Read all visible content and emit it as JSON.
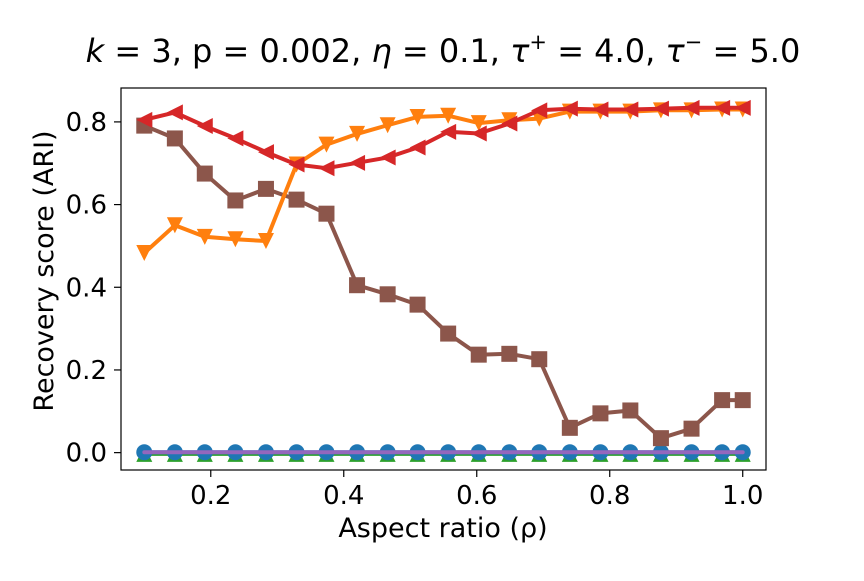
{
  "chart_data": {
    "type": "line",
    "title": "k = 3, p = 0.002, η = 0.1, τ⁺ = 4.0, τ⁻ = 5.0",
    "title_parts": {
      "k": "k",
      "k_rest": " = 3, p = 0.002, ",
      "eta": "η",
      "eta_rest": " = 0.1, ",
      "tau_plus": "τ",
      "tau_plus_sup": "+",
      "tau_plus_rest": " = 4.0, ",
      "tau_minus": "τ",
      "tau_minus_sup": "−",
      "tau_minus_rest": " = 5.0"
    },
    "xlabel": "Aspect ratio (ρ)",
    "ylabel": "Recovery score (ARI)",
    "xlim": [
      0.065,
      1.035
    ],
    "ylim": [
      -0.042,
      0.882
    ],
    "xticks": [
      0.2,
      0.4,
      0.6,
      0.8,
      1.0
    ],
    "xtick_labels": [
      "0.2",
      "0.4",
      "0.6",
      "0.8",
      "1.0"
    ],
    "yticks": [
      0.0,
      0.2,
      0.4,
      0.6,
      0.8
    ],
    "ytick_labels": [
      "0.0",
      "0.2",
      "0.4",
      "0.6",
      "0.8"
    ],
    "grid": false,
    "x": [
      0.1,
      0.146,
      0.191,
      0.237,
      0.283,
      0.329,
      0.374,
      0.42,
      0.466,
      0.511,
      0.557,
      0.603,
      0.649,
      0.694,
      0.74,
      0.786,
      0.831,
      0.877,
      0.923,
      0.969,
      1.0
    ],
    "series": [
      {
        "name": "triangle-up-series",
        "color": "#2ca02c",
        "marker": "triangle-up",
        "values": [
          -0.003,
          -0.003,
          -0.003,
          -0.003,
          -0.003,
          -0.003,
          -0.003,
          -0.003,
          -0.003,
          -0.003,
          -0.003,
          -0.003,
          -0.003,
          -0.003,
          -0.003,
          -0.003,
          -0.003,
          -0.003,
          -0.003,
          -0.003,
          -0.003
        ]
      },
      {
        "name": "circle-series",
        "color": "#1f77b4",
        "marker": "circle",
        "values": [
          0.001,
          0.001,
          0.001,
          0.001,
          0.001,
          0.001,
          0.001,
          0.001,
          0.001,
          0.001,
          0.001,
          0.001,
          0.001,
          0.001,
          0.001,
          0.001,
          0.001,
          0.001,
          0.001,
          0.001,
          0.001
        ]
      },
      {
        "name": "square-series",
        "color": "#8c564b",
        "marker": "square",
        "values": [
          0.791,
          0.76,
          0.675,
          0.61,
          0.638,
          0.612,
          0.578,
          0.405,
          0.383,
          0.358,
          0.288,
          0.237,
          0.239,
          0.226,
          0.06,
          0.095,
          0.102,
          0.035,
          0.058,
          0.127,
          0.127
        ]
      },
      {
        "name": "triangle-down-series",
        "color": "#ff7f0e",
        "marker": "triangle-down",
        "values": [
          0.483,
          0.55,
          0.522,
          0.516,
          0.512,
          0.697,
          0.745,
          0.771,
          0.792,
          0.812,
          0.815,
          0.797,
          0.804,
          0.808,
          0.825,
          0.825,
          0.825,
          0.828,
          0.828,
          0.83,
          0.83
        ]
      },
      {
        "name": "triangle-left-series",
        "color": "#d62728",
        "marker": "triangle-left",
        "values": [
          0.805,
          0.823,
          0.79,
          0.76,
          0.727,
          0.697,
          0.688,
          0.701,
          0.714,
          0.738,
          0.776,
          0.772,
          0.796,
          0.828,
          0.832,
          0.83,
          0.83,
          0.832,
          0.834,
          0.834,
          0.834
        ]
      },
      {
        "name": "purple-flat-series",
        "color": "#9467bd",
        "marker": "none",
        "values": [
          0.001,
          0.001,
          0.001,
          0.001,
          0.001,
          0.001,
          0.001,
          0.001,
          0.001,
          0.001,
          0.001,
          0.001,
          0.001,
          0.001,
          0.001,
          0.001,
          0.001,
          0.001,
          0.001,
          0.001,
          0.001
        ]
      }
    ]
  }
}
